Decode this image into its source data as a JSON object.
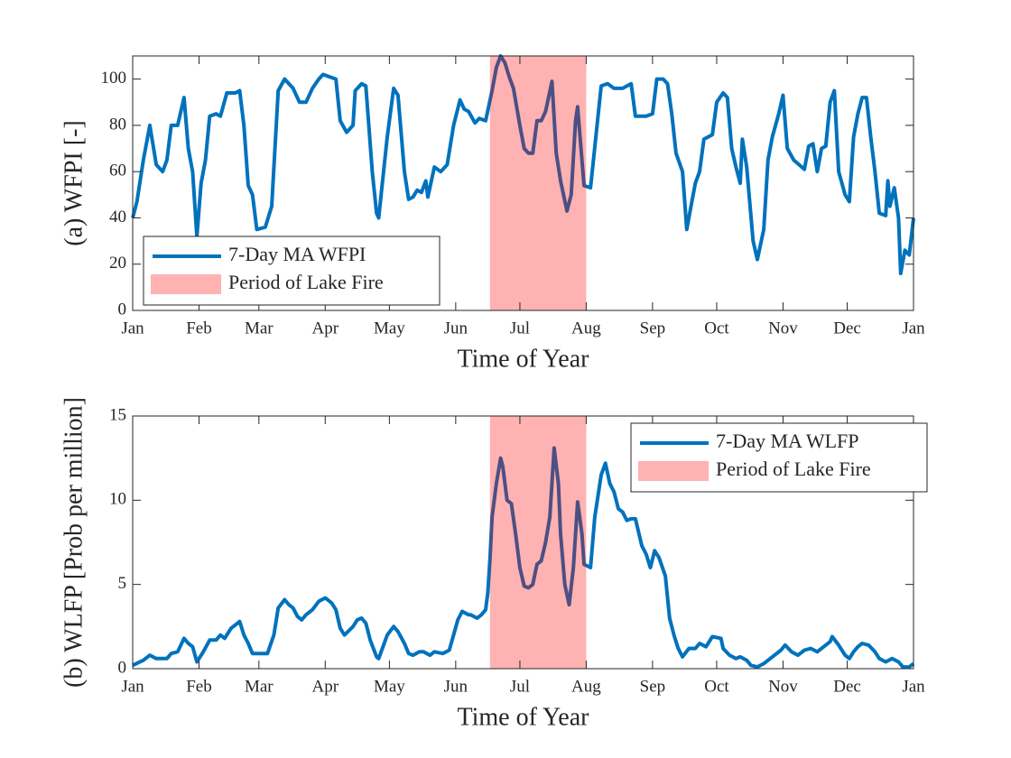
{
  "chart_data": [
    {
      "type": "line",
      "ylabel": "(a) WFPI [-]",
      "xlabel": "Time of Year",
      "legend": "lower left",
      "x": [
        0,
        2,
        5,
        8,
        11,
        14,
        16,
        18,
        21,
        24,
        26,
        28,
        30,
        32,
        34,
        36,
        39,
        41,
        44,
        48,
        50,
        52,
        54,
        56,
        58,
        62,
        65,
        68,
        71,
        75,
        78,
        81,
        84,
        87,
        89,
        92,
        95,
        97,
        100,
        103,
        104,
        107,
        109,
        112,
        114,
        115,
        119,
        122,
        124,
        127,
        129,
        131,
        133,
        135,
        137,
        138,
        141,
        144,
        147,
        150,
        153,
        155,
        157,
        160,
        162,
        165,
        168,
        170,
        172,
        174,
        176,
        178,
        181,
        183,
        185,
        187,
        189,
        191,
        193,
        196,
        198,
        200,
        203,
        205,
        207,
        208,
        210,
        211,
        214,
        219,
        222,
        225,
        229,
        233,
        235,
        240,
        243,
        245,
        248,
        250,
        252,
        254,
        257,
        259,
        261,
        263,
        265,
        267,
        271,
        273,
        276,
        278,
        280,
        282,
        284,
        285,
        287,
        290,
        292,
        295,
        297,
        299,
        302,
        304,
        306,
        309,
        314,
        316,
        318,
        320,
        322,
        324,
        326,
        328,
        330,
        333,
        335,
        337,
        339,
        341,
        343,
        345,
        347,
        349,
        352,
        353,
        354,
        356,
        358,
        359,
        361,
        363,
        365
      ],
      "series": [
        {
          "name": "7-Day MA WFPI",
          "color": "#0072bd",
          "values": [
            40,
            47,
            65,
            80,
            63,
            60,
            65,
            80,
            80,
            92,
            70,
            60,
            32,
            55,
            65,
            84,
            85,
            84,
            94,
            94,
            95,
            80,
            54,
            50,
            35,
            36,
            45,
            95,
            100,
            96,
            90,
            90,
            96,
            100,
            102,
            101,
            100,
            82,
            77,
            80,
            95,
            98,
            97,
            60,
            42,
            40,
            75,
            96,
            93,
            60,
            48,
            49,
            52,
            51,
            56,
            49,
            62,
            60,
            63,
            80,
            91,
            87,
            86,
            81,
            83,
            82,
            95,
            105,
            110,
            107,
            101,
            96,
            80,
            70,
            68,
            68,
            82,
            82,
            86,
            99,
            68,
            56,
            43,
            50,
            82,
            88,
            65,
            54,
            53,
            97,
            98,
            96,
            96,
            98,
            84,
            84,
            85,
            100,
            100,
            98,
            85,
            68,
            60,
            35,
            45,
            55,
            60,
            74,
            76,
            90,
            94,
            92,
            70,
            62,
            55,
            74,
            62,
            30,
            22,
            35,
            65,
            75,
            85,
            93,
            70,
            65,
            61,
            71,
            72,
            60,
            70,
            71,
            90,
            95,
            60,
            50,
            47,
            75,
            85,
            92,
            92,
            75,
            60,
            42,
            41,
            56,
            45,
            53,
            40,
            16,
            26,
            24,
            40
          ]
        }
      ],
      "span": {
        "name": "Period of Lake Fire",
        "color": "#ff0000",
        "alpha": 0.3,
        "x": [
          167,
          212
        ]
      },
      "xlim": [
        0,
        365
      ],
      "xticks": [
        {
          "value": 0,
          "label": "Jan"
        },
        {
          "value": 31,
          "label": "Feb"
        },
        {
          "value": 59,
          "label": "Mar"
        },
        {
          "value": 90,
          "label": "Apr"
        },
        {
          "value": 120,
          "label": "May"
        },
        {
          "value": 151,
          "label": "Jun"
        },
        {
          "value": 181,
          "label": "Jul"
        },
        {
          "value": 212,
          "label": "Aug"
        },
        {
          "value": 243,
          "label": "Sep"
        },
        {
          "value": 273,
          "label": "Oct"
        },
        {
          "value": 304,
          "label": "Nov"
        },
        {
          "value": 334,
          "label": "Dec"
        },
        {
          "value": 365,
          "label": "Jan"
        }
      ],
      "ylim": [
        0,
        110
      ],
      "yticks": [
        0,
        20,
        40,
        60,
        80,
        100
      ]
    },
    {
      "type": "line",
      "ylabel": "(b) WLFP [Prob per million]",
      "xlabel": "Time of Year",
      "legend": "upper right",
      "x": [
        0,
        5,
        8,
        11,
        16,
        18,
        21,
        24,
        26,
        28,
        30,
        33,
        36,
        39,
        41,
        43,
        46,
        48,
        50,
        52,
        54,
        56,
        60,
        63,
        66,
        68,
        71,
        73,
        75,
        77,
        79,
        81,
        84,
        87,
        90,
        93,
        95,
        97,
        99,
        103,
        105,
        107,
        109,
        111,
        114,
        115,
        117,
        119,
        122,
        124,
        127,
        129,
        131,
        134,
        136,
        139,
        141,
        145,
        148,
        150,
        152,
        154,
        157,
        158,
        161,
        163,
        165,
        166,
        167,
        168,
        170,
        172,
        173,
        175,
        177,
        179,
        181,
        183,
        185,
        187,
        189,
        191,
        193,
        195,
        197,
        199,
        200,
        202,
        204,
        206,
        208,
        210,
        211,
        214,
        216,
        219,
        221,
        223,
        225,
        227,
        229,
        231,
        233,
        235,
        238,
        240,
        242,
        244,
        246,
        249,
        251,
        253,
        255,
        257,
        260,
        263,
        265,
        268,
        271,
        275,
        276,
        279,
        282,
        284,
        287,
        289,
        292,
        295,
        299,
        303,
        305,
        308,
        311,
        314,
        317,
        320,
        322,
        324,
        326,
        327,
        330,
        333,
        335,
        337,
        339,
        341,
        344,
        347,
        349,
        352,
        355,
        358,
        360,
        363,
        365
      ],
      "series": [
        {
          "name": "7-Day MA WLFP",
          "color": "#0072bd",
          "values": [
            0.2,
            0.5,
            0.8,
            0.6,
            0.6,
            0.9,
            1.0,
            1.8,
            1.5,
            1.3,
            0.4,
            1.0,
            1.7,
            1.7,
            2.0,
            1.8,
            2.4,
            2.6,
            2.8,
            2.0,
            1.5,
            0.9,
            0.9,
            0.9,
            2.0,
            3.6,
            4.1,
            3.8,
            3.6,
            3.1,
            2.9,
            3.2,
            3.5,
            4.0,
            4.2,
            3.9,
            3.5,
            2.4,
            2.0,
            2.5,
            2.9,
            3.0,
            2.7,
            1.7,
            0.7,
            0.6,
            1.3,
            2.0,
            2.5,
            2.2,
            1.5,
            0.9,
            0.8,
            1.0,
            1.0,
            0.8,
            1.0,
            0.9,
            1.1,
            2.0,
            2.9,
            3.4,
            3.2,
            3.2,
            3.0,
            3.2,
            3.5,
            4.5,
            6.5,
            9,
            11,
            12.5,
            12.0,
            10.0,
            9.8,
            8,
            6.0,
            4.9,
            4.8,
            5.0,
            6.2,
            6.4,
            7.5,
            9.0,
            13.1,
            11,
            8,
            5.0,
            3.8,
            6.0,
            9.9,
            8.0,
            6.2,
            6.0,
            9.0,
            11.5,
            12.2,
            11.0,
            10.5,
            9.5,
            9.3,
            8.8,
            8.9,
            8.9,
            7.3,
            6.8,
            6.0,
            7.0,
            6.6,
            5.5,
            3.0,
            2.0,
            1.2,
            0.7,
            1.2,
            1.2,
            1.5,
            1.3,
            1.9,
            1.8,
            1.2,
            0.8,
            0.6,
            0.7,
            0.5,
            0.2,
            0.1,
            0.3,
            0.7,
            1.1,
            1.4,
            1.0,
            0.8,
            1.1,
            1.2,
            1.0,
            1.2,
            1.4,
            1.6,
            1.9,
            1.4,
            0.8,
            0.6,
            1.0,
            1.3,
            1.5,
            1.4,
            1.0,
            0.6,
            0.4,
            0.6,
            0.4,
            0.1,
            0.1,
            0.3
          ]
        }
      ],
      "span": {
        "name": "Period of Lake Fire",
        "color": "#ff0000",
        "alpha": 0.3,
        "x": [
          167,
          212
        ]
      },
      "xlim": [
        0,
        365
      ],
      "xticks": [
        {
          "value": 0,
          "label": "Jan"
        },
        {
          "value": 31,
          "label": "Feb"
        },
        {
          "value": 59,
          "label": "Mar"
        },
        {
          "value": 90,
          "label": "Apr"
        },
        {
          "value": 120,
          "label": "May"
        },
        {
          "value": 151,
          "label": "Jun"
        },
        {
          "value": 181,
          "label": "Jul"
        },
        {
          "value": 212,
          "label": "Aug"
        },
        {
          "value": 243,
          "label": "Sep"
        },
        {
          "value": 273,
          "label": "Oct"
        },
        {
          "value": 304,
          "label": "Nov"
        },
        {
          "value": 334,
          "label": "Dec"
        },
        {
          "value": 365,
          "label": "Jan"
        }
      ],
      "ylim": [
        0,
        15
      ],
      "yticks": [
        0,
        5,
        10,
        15
      ]
    }
  ]
}
